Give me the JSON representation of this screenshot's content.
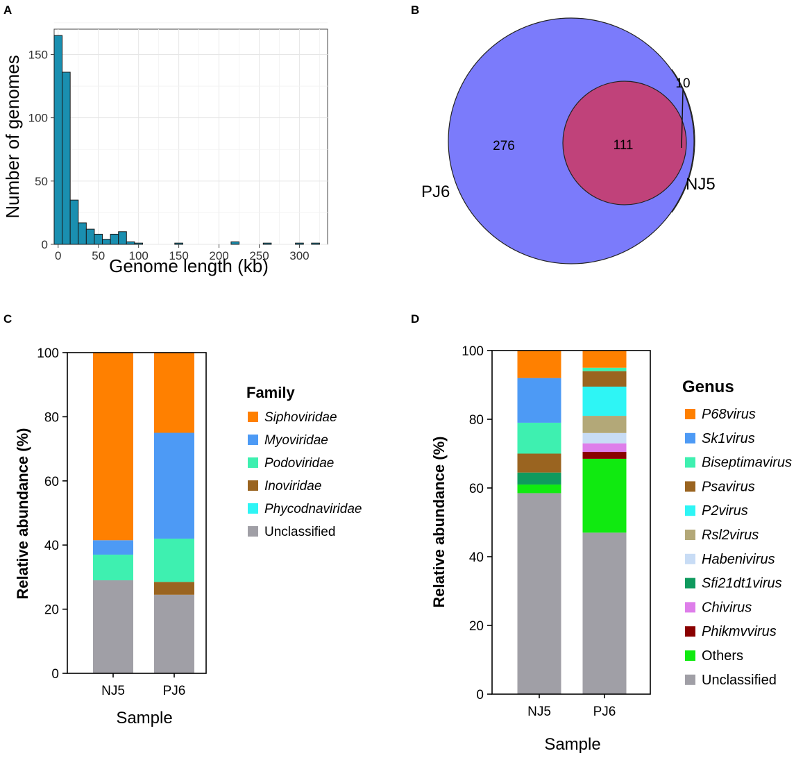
{
  "panels": {
    "a": "A",
    "b": "B",
    "c": "C",
    "d": "D"
  },
  "chart_data": [
    {
      "id": "A",
      "type": "bar",
      "subtype": "histogram",
      "xlabel": "Genome length (kb)",
      "ylabel": "Number of genomes",
      "xlim": [
        -5,
        335
      ],
      "ylim": [
        0,
        170
      ],
      "xticks": [
        0,
        50,
        100,
        150,
        200,
        250,
        300
      ],
      "yticks": [
        0,
        50,
        100,
        150
      ],
      "bin_width": 10,
      "bins": [
        {
          "x": 0,
          "count": 165
        },
        {
          "x": 10,
          "count": 136
        },
        {
          "x": 20,
          "count": 35
        },
        {
          "x": 30,
          "count": 17
        },
        {
          "x": 40,
          "count": 12
        },
        {
          "x": 50,
          "count": 8
        },
        {
          "x": 60,
          "count": 4
        },
        {
          "x": 70,
          "count": 8
        },
        {
          "x": 80,
          "count": 10
        },
        {
          "x": 90,
          "count": 2
        },
        {
          "x": 100,
          "count": 1
        },
        {
          "x": 150,
          "count": 1
        },
        {
          "x": 220,
          "count": 2
        },
        {
          "x": 260,
          "count": 1
        },
        {
          "x": 300,
          "count": 1
        },
        {
          "x": 320,
          "count": 1
        }
      ],
      "color": "#1a8fb0",
      "grid": true
    },
    {
      "id": "B",
      "type": "venn",
      "sets": [
        {
          "name": "PJ6",
          "size": 387,
          "color": "#7b7bfb"
        },
        {
          "name": "NJ5",
          "size": 121,
          "color": "#f26b6b"
        }
      ],
      "regions": {
        "PJ6_only": 276,
        "both": 111,
        "NJ5_only": 10
      },
      "overlap_color": "#c0427a"
    },
    {
      "id": "C",
      "type": "bar",
      "subtype": "stacked",
      "xlabel": "Sample",
      "ylabel": "Relative abundance (%)",
      "ylim": [
        0,
        100
      ],
      "yticks": [
        0,
        20,
        40,
        60,
        80,
        100
      ],
      "categories": [
        "NJ5",
        "PJ6"
      ],
      "legend_title": "Family",
      "series": [
        {
          "name": "Unclassified",
          "italic": false,
          "color": "#a09fa6",
          "values": [
            29,
            24.5
          ]
        },
        {
          "name": "Phycodnaviridae",
          "italic": true,
          "color": "#2ef5f5",
          "values": [
            0,
            0
          ]
        },
        {
          "name": "Inoviridae",
          "italic": true,
          "color": "#9a6420",
          "values": [
            0,
            4
          ]
        },
        {
          "name": "Podoviridae",
          "italic": true,
          "color": "#3ef0b0",
          "values": [
            8,
            13.5
          ]
        },
        {
          "name": "Myoviridae",
          "italic": true,
          "color": "#4d9af5",
          "values": [
            4.5,
            33
          ]
        },
        {
          "name": "Siphoviridae",
          "italic": true,
          "color": "#ff8000",
          "values": [
            58.5,
            25
          ]
        }
      ]
    },
    {
      "id": "D",
      "type": "bar",
      "subtype": "stacked",
      "xlabel": "Sample",
      "ylabel": "Relative abundance (%)",
      "ylim": [
        0,
        100
      ],
      "yticks": [
        0,
        20,
        40,
        60,
        80,
        100
      ],
      "categories": [
        "NJ5",
        "PJ6"
      ],
      "legend_title": "Genus",
      "series": [
        {
          "name": "Unclassified",
          "italic": false,
          "color": "#a09fa6",
          "values": [
            58.5,
            47
          ]
        },
        {
          "name": "Others",
          "italic": false,
          "color": "#10ea10",
          "values": [
            2.5,
            21.5
          ]
        },
        {
          "name": "Phikmvvirus",
          "italic": true,
          "color": "#8a0000",
          "values": [
            0,
            2
          ]
        },
        {
          "name": "Chivirus",
          "italic": true,
          "color": "#de7eea",
          "values": [
            0,
            2.5
          ]
        },
        {
          "name": "Sfi21dt1virus",
          "italic": true,
          "color": "#0f9a5e",
          "values": [
            3.5,
            0
          ]
        },
        {
          "name": "Habenivirus",
          "italic": true,
          "color": "#c8dcf5",
          "values": [
            0,
            3
          ]
        },
        {
          "name": "Rsl2virus",
          "italic": true,
          "color": "#b3a878",
          "values": [
            0,
            5
          ]
        },
        {
          "name": "P2virus",
          "italic": true,
          "color": "#2ef5f5",
          "values": [
            0,
            8.5
          ]
        },
        {
          "name": "Psavirus",
          "italic": true,
          "color": "#9a6420",
          "values": [
            5.5,
            4.5
          ]
        },
        {
          "name": "Biseptimavirus",
          "italic": true,
          "color": "#3ef0b0",
          "values": [
            9,
            1
          ]
        },
        {
          "name": "Sk1virus",
          "italic": true,
          "color": "#4d9af5",
          "values": [
            13,
            0
          ]
        },
        {
          "name": "P68virus",
          "italic": true,
          "color": "#ff8000",
          "values": [
            8,
            5
          ]
        }
      ]
    }
  ]
}
